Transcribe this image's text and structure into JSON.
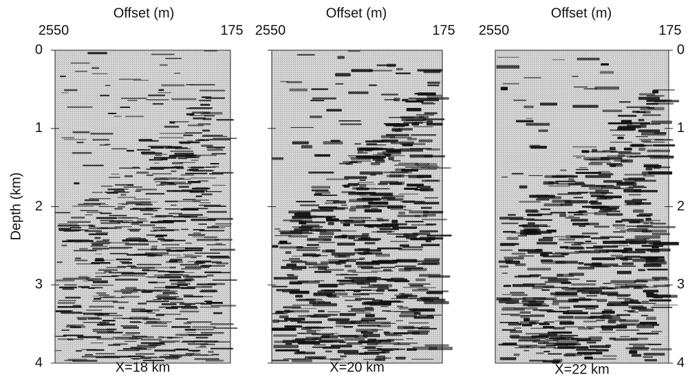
{
  "y_axis": {
    "label": "Depth (km)",
    "ticks": [
      0,
      1,
      2,
      3,
      4
    ]
  },
  "panels": [
    {
      "x_axis_label": "Offset (m)",
      "x_ticks": [
        2550,
        175
      ],
      "caption": "X=18 km"
    },
    {
      "x_axis_label": "Offset (m)",
      "x_ticks": [
        2550,
        175
      ],
      "caption": "X=20 km"
    },
    {
      "x_axis_label": "Offset (m)",
      "x_ticks": [
        2550,
        175
      ],
      "caption": "X=22 km"
    }
  ],
  "right_axis": {
    "ticks": [
      0,
      1,
      2,
      3,
      4
    ]
  }
}
